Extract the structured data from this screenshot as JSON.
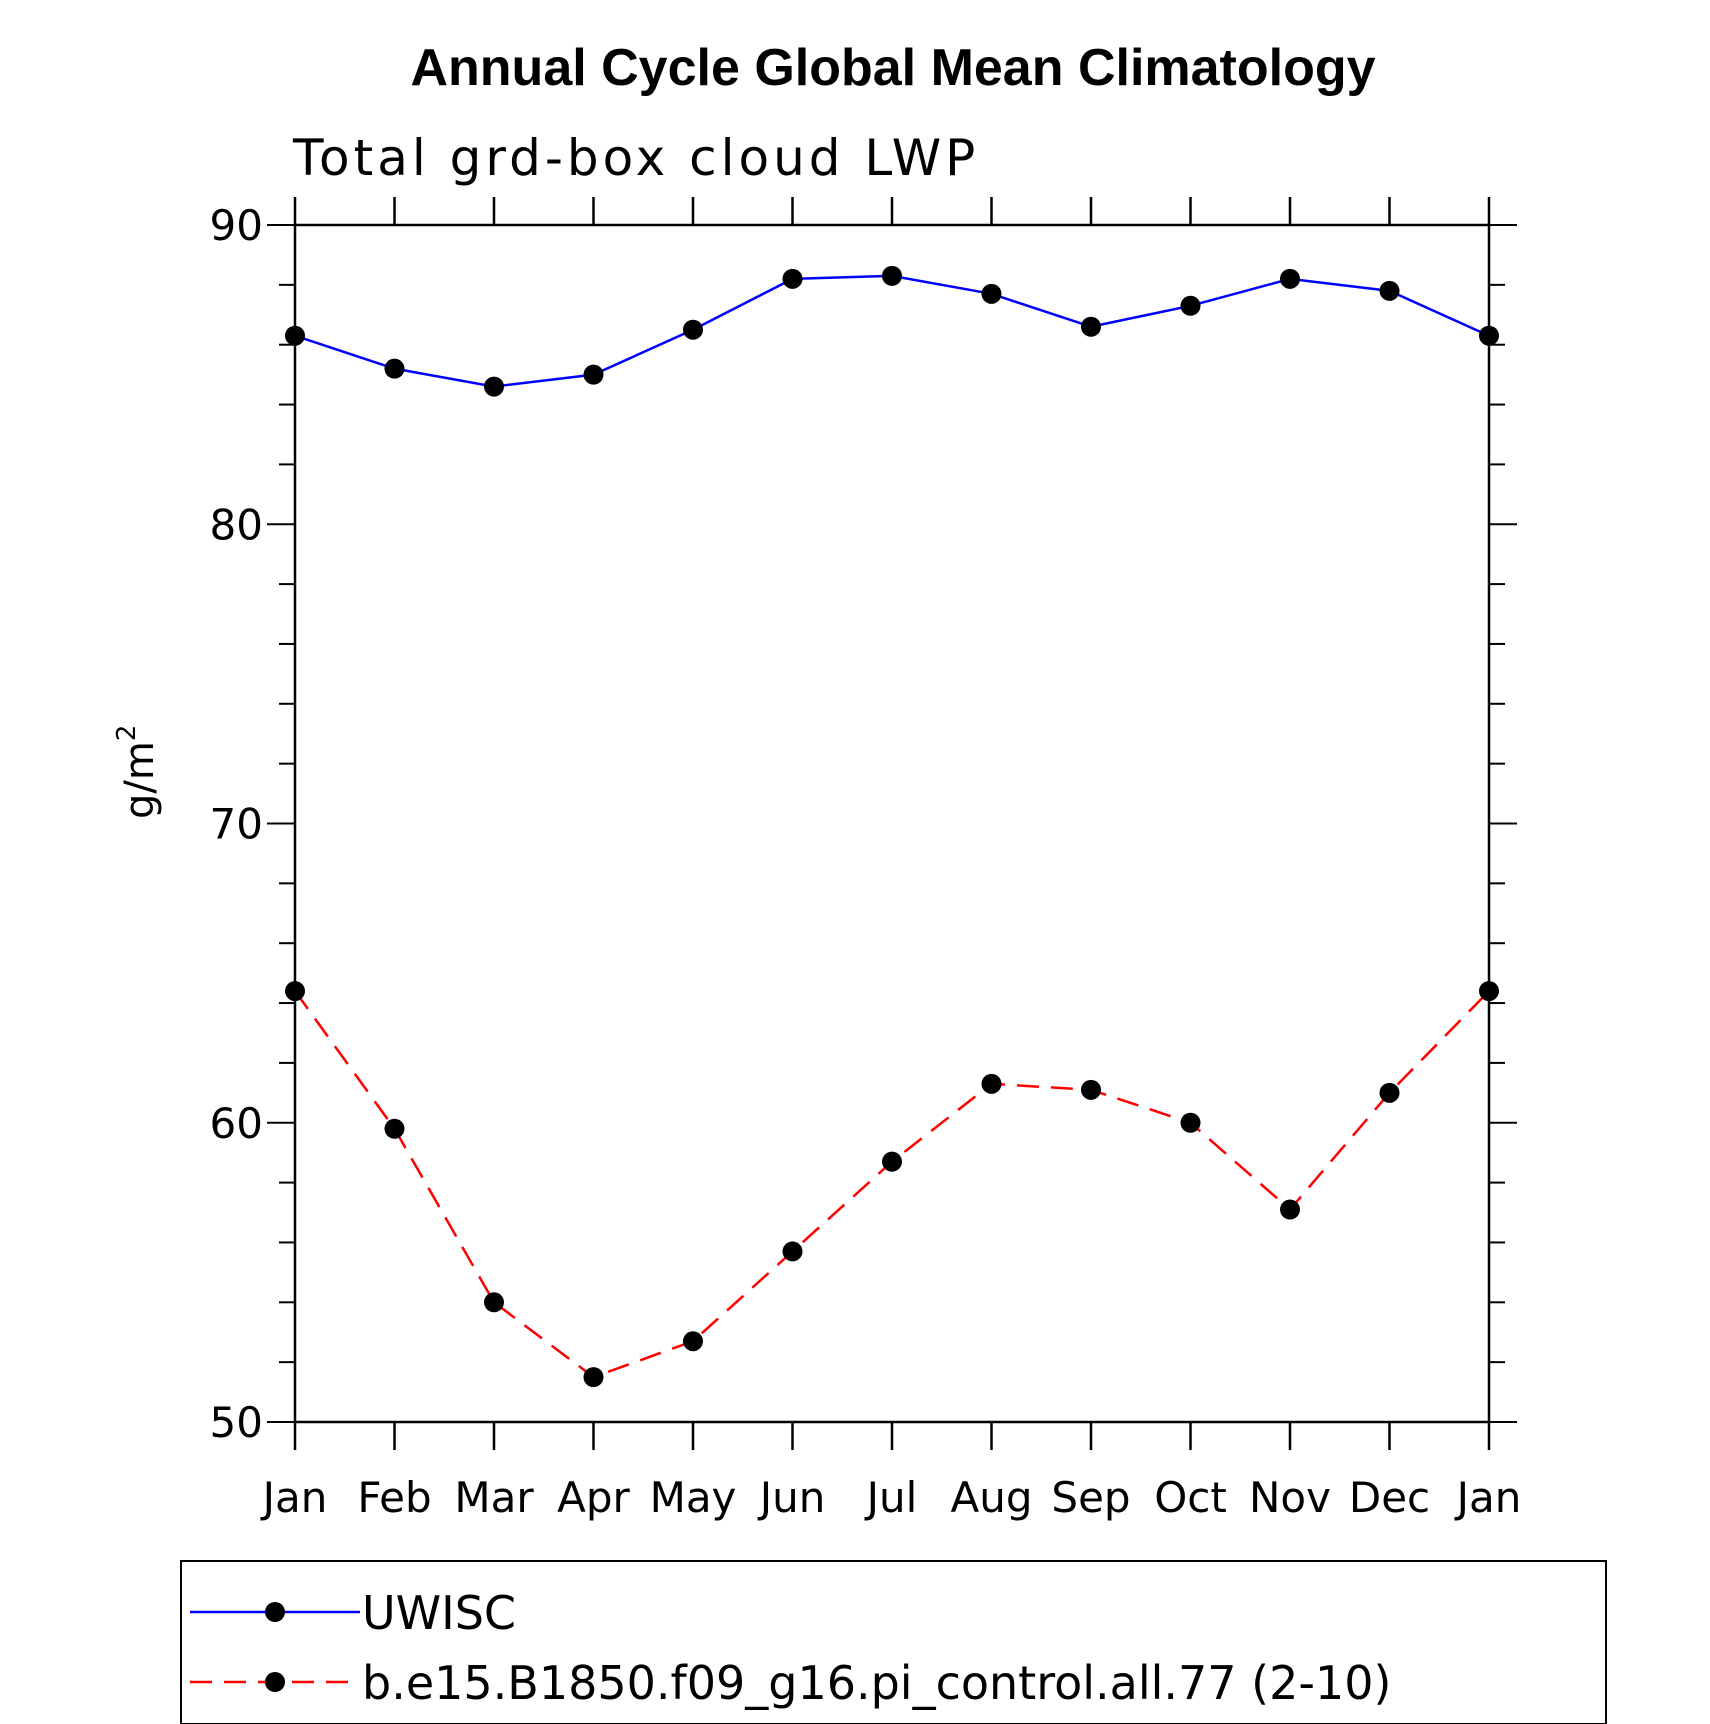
{
  "chart_data": {
    "type": "line",
    "title": "Annual Cycle Global Mean Climatology",
    "subtitle": "Total grd-box cloud LWP",
    "xlabel": "",
    "ylabel": "g/m",
    "ylabel_superscript": "2",
    "categories": [
      "Jan",
      "Feb",
      "Mar",
      "Apr",
      "May",
      "Jun",
      "Jul",
      "Aug",
      "Sep",
      "Oct",
      "Nov",
      "Dec",
      "Jan"
    ],
    "ylim": [
      50,
      90
    ],
    "yticks": [
      50,
      60,
      70,
      80,
      90
    ],
    "grid": false,
    "legend_position": "bottom",
    "series": [
      {
        "name": "UWISC",
        "color": "#0000ff",
        "style": "solid",
        "marker": "circle",
        "values": [
          86.3,
          85.2,
          84.6,
          85.0,
          86.5,
          88.2,
          88.3,
          87.7,
          86.6,
          87.3,
          88.2,
          87.8,
          86.3
        ]
      },
      {
        "name": "b.e15.B1850.f09_g16.pi_control.all.77 (2-10)",
        "color": "#ff0000",
        "style": "dashed",
        "marker": "circle",
        "values": [
          64.4,
          59.8,
          54.0,
          51.5,
          52.7,
          55.7,
          58.7,
          61.3,
          61.1,
          60.0,
          57.1,
          61.0,
          64.4
        ]
      }
    ]
  }
}
